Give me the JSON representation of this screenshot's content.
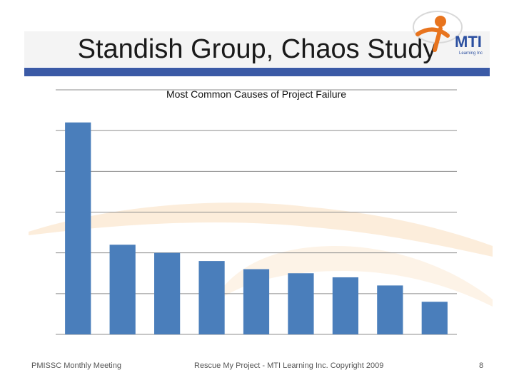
{
  "slide": {
    "title": "Standish Group, Chaos Study",
    "logo_text": "MTI",
    "logo_sub": "Learning Inc"
  },
  "footer": {
    "left": "PMISSC Monthly Meeting",
    "center": "Rescue My Project - MTI Learning Inc. Copyright 2009",
    "page": "8"
  },
  "colors": {
    "bar": "#4a7ebb",
    "accent": "#3b5aa6",
    "logo_orange": "#e8741e"
  },
  "chart_data": {
    "type": "bar",
    "title": "Most Common Causes of Project Failure",
    "categories": [
      "",
      "",
      "",
      "",
      "",
      "",
      "",
      "",
      ""
    ],
    "values": [
      5.2,
      2.2,
      2.0,
      1.8,
      1.6,
      1.5,
      1.4,
      1.2,
      0.8
    ],
    "ylim": [
      0,
      6
    ],
    "grid": true,
    "xlabel": "",
    "ylabel": ""
  }
}
